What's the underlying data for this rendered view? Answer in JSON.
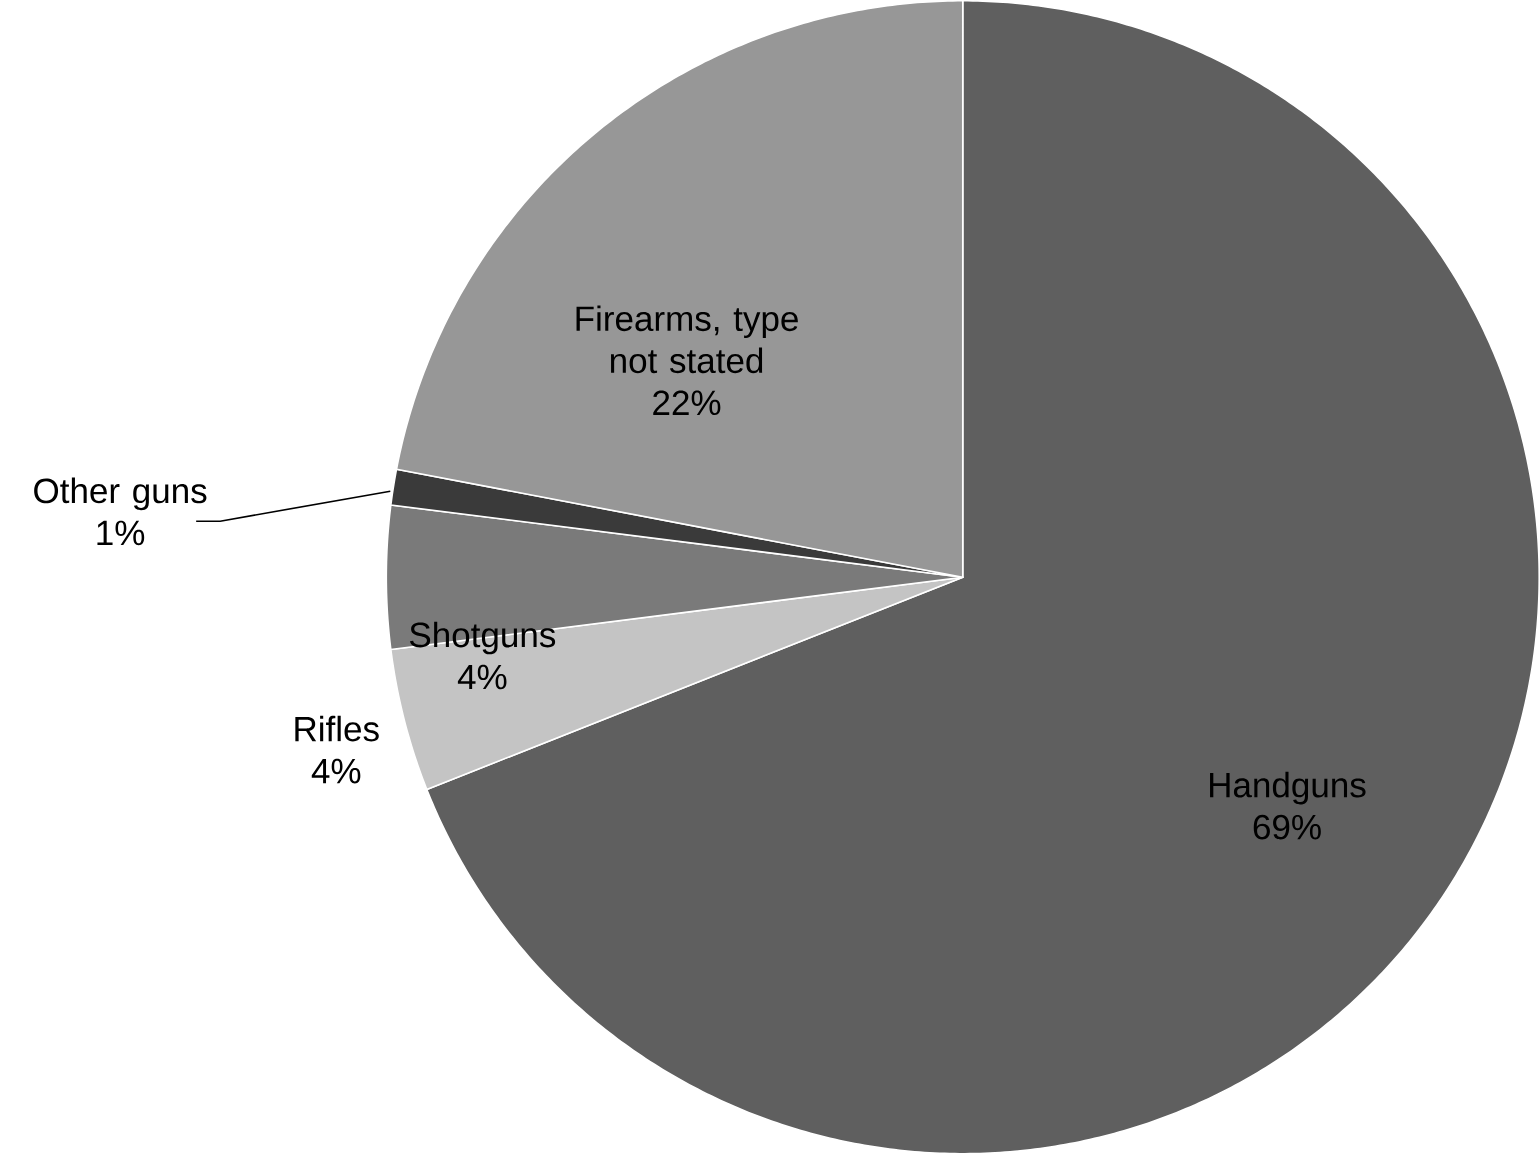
{
  "chart_data": {
    "type": "pie",
    "categories": [
      "Handguns",
      "Rifles",
      "Shotguns",
      "Other guns",
      "Firearms, type not stated"
    ],
    "values": [
      69,
      4,
      4,
      1,
      22
    ],
    "value_labels": [
      "69%",
      "4%",
      "4%",
      "1%",
      "22%"
    ],
    "colors": [
      "#5f5f5f",
      "#c4c4c4",
      "#7a7a7a",
      "#3a3a3a",
      "#979797"
    ]
  }
}
